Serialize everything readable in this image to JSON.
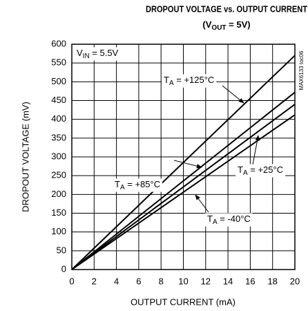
{
  "chart_data": {
    "type": "line",
    "title": "DROPOUT VOLTAGE vs. OUTPUT CURRENT",
    "subtitle": [
      "(V",
      "OUT",
      " = 5V)"
    ],
    "x_label": "OUTPUT CURRENT (mA)",
    "y_label": "DROPOUT VOLTAGE (mV)",
    "watermark": "MAX6133 toc06",
    "x": [
      0,
      20
    ],
    "series": [
      {
        "name": [
          "T",
          "A",
          " = +125°C"
        ],
        "color": "#000000",
        "values": [
          0,
          570
        ]
      },
      {
        "name": [
          "T",
          "A",
          " = +85°C"
        ],
        "color": "#000000",
        "values": [
          0,
          472
        ]
      },
      {
        "name": [
          "T",
          "A",
          " = +25°C"
        ],
        "color": "#000000",
        "values": [
          0,
          440
        ]
      },
      {
        "name": [
          "T",
          "A",
          " = -40°C"
        ],
        "color": "#000000",
        "values": [
          0,
          412
        ]
      }
    ],
    "annotations": [
      [
        "V",
        "IN",
        " = 5.5V"
      ]
    ],
    "xlim": [
      0,
      20
    ],
    "xticks": [
      0,
      2,
      4,
      6,
      8,
      10,
      12,
      14,
      16,
      18,
      20
    ],
    "ylim": [
      0,
      600
    ],
    "yticks": [
      0,
      50,
      100,
      150,
      200,
      250,
      300,
      350,
      400,
      450,
      500,
      550,
      600
    ],
    "grid": true
  }
}
